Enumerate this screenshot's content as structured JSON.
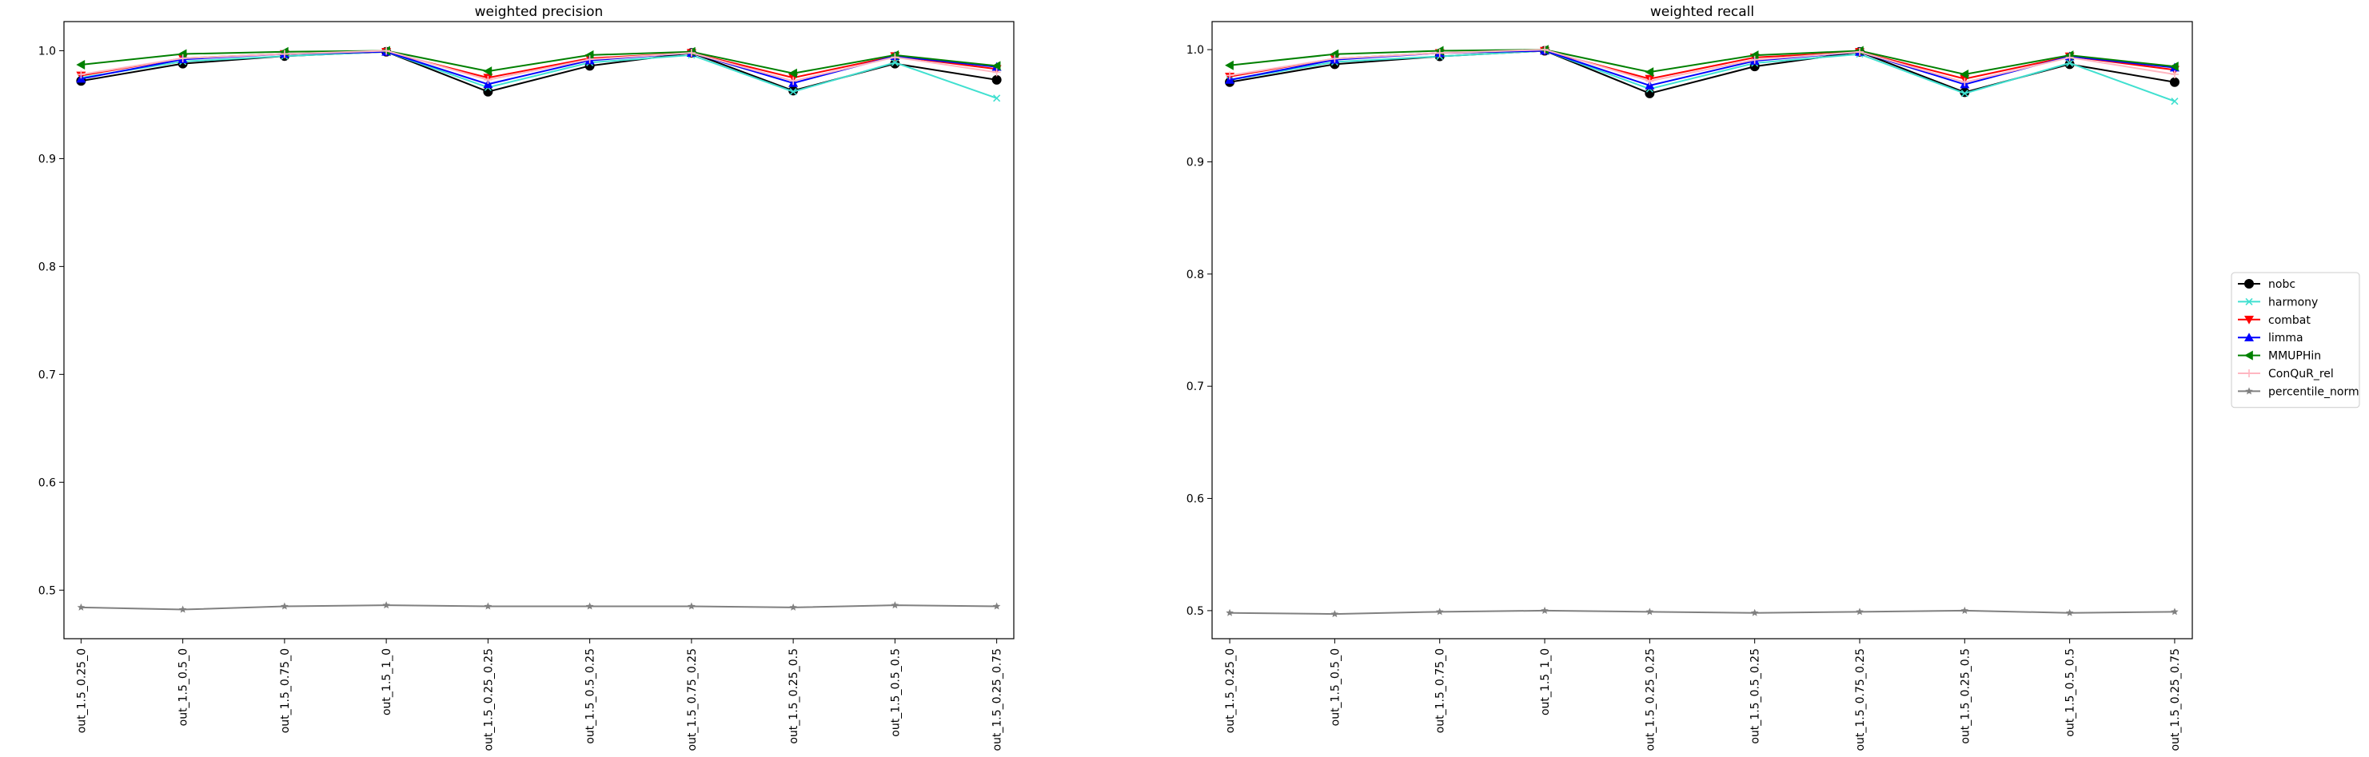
{
  "chart_data": [
    {
      "type": "line",
      "title": "weighted precision",
      "xlabel": "",
      "ylabel": "",
      "categories": [
        "out_1.5_0.25_0",
        "out_1.5_0.5_0",
        "out_1.5_0.75_0",
        "out_1.5_1_0",
        "out_1.5_0.25_0.25",
        "out_1.5_0.5_0.25",
        "out_1.5_0.75_0.25",
        "out_1.5_0.25_0.5",
        "out_1.5_0.5_0.5",
        "out_1.5_0.25_0.75"
      ],
      "ylim": [
        0.455,
        1.027
      ],
      "yticks": [
        "0.5",
        "0.6",
        "0.7",
        "0.8",
        "0.9",
        "1.0"
      ],
      "series": [
        {
          "name": "nobc",
          "color": "#000000",
          "marker": "circle",
          "values": [
            0.972,
            0.988,
            0.995,
            0.999,
            0.962,
            0.986,
            0.998,
            0.963,
            0.988,
            0.973
          ]
        },
        {
          "name": "harmony",
          "color": "#40e0d0",
          "marker": "x",
          "values": [
            0.975,
            0.99,
            0.995,
            0.999,
            0.966,
            0.989,
            0.996,
            0.962,
            0.989,
            0.956
          ]
        },
        {
          "name": "combat",
          "color": "#ff0000",
          "marker": "triangle-down",
          "values": [
            0.977,
            0.993,
            0.997,
            0.999,
            0.975,
            0.993,
            0.998,
            0.975,
            0.995,
            0.983
          ]
        },
        {
          "name": "limma",
          "color": "#0000ff",
          "marker": "triangle-up",
          "values": [
            0.974,
            0.992,
            0.997,
            0.999,
            0.969,
            0.991,
            0.998,
            0.97,
            0.995,
            0.985
          ]
        },
        {
          "name": "MMUPHin",
          "color": "#008000",
          "marker": "triangle-left",
          "values": [
            0.987,
            0.997,
            0.999,
            1.0,
            0.981,
            0.996,
            0.999,
            0.979,
            0.996,
            0.986
          ]
        },
        {
          "name": "ConQuR_rel",
          "color": "#ffb6c1",
          "marker": "plus",
          "values": [
            0.978,
            0.993,
            0.997,
            1.0,
            0.973,
            0.992,
            0.998,
            0.972,
            0.994,
            0.98
          ]
        },
        {
          "name": "percentile_norm",
          "color": "#808080",
          "marker": "star",
          "values": [
            0.484,
            0.482,
            0.485,
            0.486,
            0.485,
            0.485,
            0.485,
            0.484,
            0.486,
            0.485
          ]
        }
      ]
    },
    {
      "type": "line",
      "title": "weighted recall",
      "xlabel": "",
      "ylabel": "",
      "categories": [
        "out_1.5_0.25_0",
        "out_1.5_0.5_0",
        "out_1.5_0.75_0",
        "out_1.5_1_0",
        "out_1.5_0.25_0.25",
        "out_1.5_0.5_0.25",
        "out_1.5_0.75_0.25",
        "out_1.5_0.25_0.5",
        "out_1.5_0.5_0.5",
        "out_1.5_0.25_0.75"
      ],
      "ylim": [
        0.475,
        1.025
      ],
      "yticks": [
        "0.5",
        "0.6",
        "0.7",
        "0.8",
        "0.9",
        "1.0"
      ],
      "series": [
        {
          "name": "nobc",
          "color": "#000000",
          "marker": "circle",
          "values": [
            0.971,
            0.987,
            0.994,
            0.999,
            0.961,
            0.985,
            0.998,
            0.962,
            0.987,
            0.971
          ]
        },
        {
          "name": "harmony",
          "color": "#40e0d0",
          "marker": "x",
          "values": [
            0.973,
            0.989,
            0.994,
            0.999,
            0.965,
            0.988,
            0.996,
            0.961,
            0.988,
            0.954
          ]
        },
        {
          "name": "combat",
          "color": "#ff0000",
          "marker": "triangle-down",
          "values": [
            0.976,
            0.992,
            0.997,
            0.999,
            0.974,
            0.993,
            0.998,
            0.974,
            0.994,
            0.982
          ]
        },
        {
          "name": "limma",
          "color": "#0000ff",
          "marker": "triangle-up",
          "values": [
            0.973,
            0.991,
            0.997,
            0.999,
            0.968,
            0.99,
            0.998,
            0.969,
            0.994,
            0.984
          ]
        },
        {
          "name": "MMUPHin",
          "color": "#008000",
          "marker": "triangle-left",
          "values": [
            0.986,
            0.996,
            0.999,
            1.0,
            0.98,
            0.995,
            0.999,
            0.978,
            0.995,
            0.985
          ]
        },
        {
          "name": "ConQuR_rel",
          "color": "#ffb6c1",
          "marker": "plus",
          "values": [
            0.977,
            0.992,
            0.997,
            1.0,
            0.972,
            0.991,
            0.998,
            0.971,
            0.993,
            0.978
          ]
        },
        {
          "name": "percentile_norm",
          "color": "#808080",
          "marker": "star",
          "values": [
            0.498,
            0.497,
            0.499,
            0.5,
            0.499,
            0.498,
            0.499,
            0.5,
            0.498,
            0.499
          ]
        }
      ]
    }
  ],
  "legend": {
    "placement": "right-center",
    "items": [
      {
        "label": "nobc",
        "color": "#000000",
        "marker": "circle"
      },
      {
        "label": "harmony",
        "color": "#40e0d0",
        "marker": "x"
      },
      {
        "label": "combat",
        "color": "#ff0000",
        "marker": "triangle-down"
      },
      {
        "label": "limma",
        "color": "#0000ff",
        "marker": "triangle-up"
      },
      {
        "label": "MMUPHin",
        "color": "#008000",
        "marker": "triangle-left"
      },
      {
        "label": "ConQuR_rel",
        "color": "#ffb6c1",
        "marker": "plus"
      },
      {
        "label": "percentile_norm",
        "color": "#808080",
        "marker": "star"
      }
    ]
  }
}
